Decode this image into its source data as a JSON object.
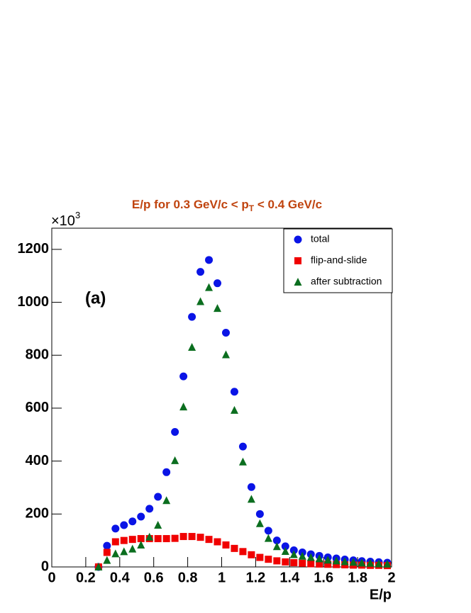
{
  "chart_data": {
    "type": "scatter",
    "title": {
      "before": "E/p for 0.3 GeV/c < p",
      "sub": "T",
      "after": " < 0.4 GeV/c"
    },
    "title_color": "#c0440f",
    "x_label": "E/p",
    "y_multiplier": {
      "base": "×10",
      "exp": "3"
    },
    "annotation": "(a)",
    "xlim": [
      0,
      2
    ],
    "ylim": [
      0,
      1280
    ],
    "xticks": [
      0,
      0.2,
      0.4,
      0.6,
      0.8,
      1,
      1.2,
      1.4,
      1.6,
      1.8,
      2
    ],
    "yticks": [
      0,
      200,
      400,
      600,
      800,
      1000,
      1200
    ],
    "legend": "top-right",
    "x": [
      0.275,
      0.325,
      0.375,
      0.425,
      0.475,
      0.525,
      0.575,
      0.625,
      0.675,
      0.725,
      0.775,
      0.825,
      0.875,
      0.925,
      0.975,
      1.025,
      1.075,
      1.125,
      1.175,
      1.225,
      1.275,
      1.325,
      1.375,
      1.425,
      1.475,
      1.525,
      1.575,
      1.625,
      1.675,
      1.725,
      1.775,
      1.825,
      1.875,
      1.925,
      1.975
    ],
    "series": [
      {
        "name": "total",
        "color": "#0a14e6",
        "marker": "circle",
        "values": [
          0,
          80,
          145,
          158,
          172,
          190,
          220,
          265,
          358,
          510,
          720,
          945,
          1115,
          1160,
          1072,
          885,
          662,
          455,
          302,
          200,
          137,
          100,
          78,
          63,
          55,
          48,
          42,
          36,
          32,
          28,
          25,
          22,
          20,
          18,
          16
        ]
      },
      {
        "name": "flip-and-slide",
        "color": "#f00000",
        "marker": "square",
        "values": [
          0,
          55,
          95,
          100,
          104,
          107,
          107,
          107,
          107,
          108,
          115,
          115,
          112,
          104,
          95,
          83,
          70,
          58,
          46,
          36,
          29,
          23,
          19,
          16,
          14,
          12,
          11,
          10,
          9,
          8,
          7,
          7,
          6,
          6,
          5
        ]
      },
      {
        "name": "after subtraction",
        "color": "#0b6e1f",
        "marker": "triangle",
        "values": [
          0,
          25,
          50,
          58,
          68,
          83,
          113,
          158,
          251,
          402,
          605,
          830,
          1003,
          1056,
          977,
          802,
          592,
          397,
          256,
          164,
          108,
          77,
          59,
          47,
          41,
          36,
          31,
          26,
          23,
          20,
          18,
          15,
          14,
          12,
          11
        ]
      }
    ]
  }
}
